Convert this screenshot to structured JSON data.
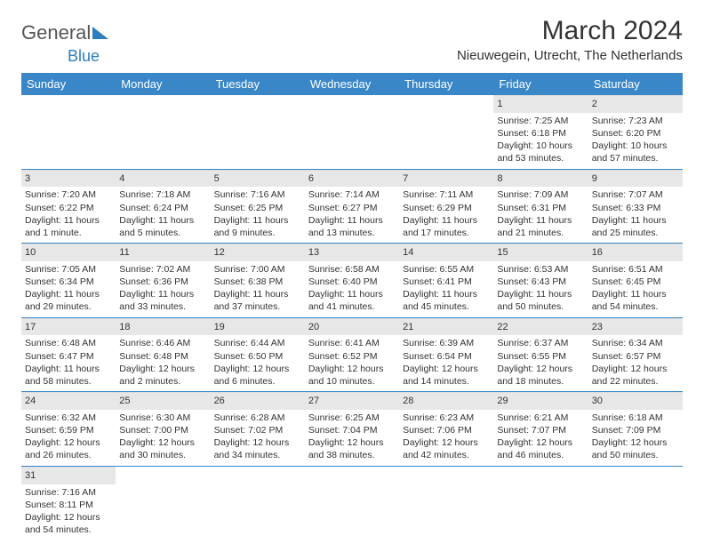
{
  "brand": {
    "part1": "General",
    "part2": "Blue"
  },
  "title": "March 2024",
  "location": "Nieuwegein, Utrecht, The Netherlands",
  "colors": {
    "header_bg": "#3a87c7",
    "daynum_bg": "#e7e7e7",
    "text": "#333333",
    "brand_blue": "#2b7fbf"
  },
  "day_names": [
    "Sunday",
    "Monday",
    "Tuesday",
    "Wednesday",
    "Thursday",
    "Friday",
    "Saturday"
  ],
  "weeks": [
    [
      null,
      null,
      null,
      null,
      null,
      {
        "n": "1",
        "sunrise": "Sunrise: 7:25 AM",
        "sunset": "Sunset: 6:18 PM",
        "daylight": "Daylight: 10 hours and 53 minutes."
      },
      {
        "n": "2",
        "sunrise": "Sunrise: 7:23 AM",
        "sunset": "Sunset: 6:20 PM",
        "daylight": "Daylight: 10 hours and 57 minutes."
      }
    ],
    [
      {
        "n": "3",
        "sunrise": "Sunrise: 7:20 AM",
        "sunset": "Sunset: 6:22 PM",
        "daylight": "Daylight: 11 hours and 1 minute."
      },
      {
        "n": "4",
        "sunrise": "Sunrise: 7:18 AM",
        "sunset": "Sunset: 6:24 PM",
        "daylight": "Daylight: 11 hours and 5 minutes."
      },
      {
        "n": "5",
        "sunrise": "Sunrise: 7:16 AM",
        "sunset": "Sunset: 6:25 PM",
        "daylight": "Daylight: 11 hours and 9 minutes."
      },
      {
        "n": "6",
        "sunrise": "Sunrise: 7:14 AM",
        "sunset": "Sunset: 6:27 PM",
        "daylight": "Daylight: 11 hours and 13 minutes."
      },
      {
        "n": "7",
        "sunrise": "Sunrise: 7:11 AM",
        "sunset": "Sunset: 6:29 PM",
        "daylight": "Daylight: 11 hours and 17 minutes."
      },
      {
        "n": "8",
        "sunrise": "Sunrise: 7:09 AM",
        "sunset": "Sunset: 6:31 PM",
        "daylight": "Daylight: 11 hours and 21 minutes."
      },
      {
        "n": "9",
        "sunrise": "Sunrise: 7:07 AM",
        "sunset": "Sunset: 6:33 PM",
        "daylight": "Daylight: 11 hours and 25 minutes."
      }
    ],
    [
      {
        "n": "10",
        "sunrise": "Sunrise: 7:05 AM",
        "sunset": "Sunset: 6:34 PM",
        "daylight": "Daylight: 11 hours and 29 minutes."
      },
      {
        "n": "11",
        "sunrise": "Sunrise: 7:02 AM",
        "sunset": "Sunset: 6:36 PM",
        "daylight": "Daylight: 11 hours and 33 minutes."
      },
      {
        "n": "12",
        "sunrise": "Sunrise: 7:00 AM",
        "sunset": "Sunset: 6:38 PM",
        "daylight": "Daylight: 11 hours and 37 minutes."
      },
      {
        "n": "13",
        "sunrise": "Sunrise: 6:58 AM",
        "sunset": "Sunset: 6:40 PM",
        "daylight": "Daylight: 11 hours and 41 minutes."
      },
      {
        "n": "14",
        "sunrise": "Sunrise: 6:55 AM",
        "sunset": "Sunset: 6:41 PM",
        "daylight": "Daylight: 11 hours and 45 minutes."
      },
      {
        "n": "15",
        "sunrise": "Sunrise: 6:53 AM",
        "sunset": "Sunset: 6:43 PM",
        "daylight": "Daylight: 11 hours and 50 minutes."
      },
      {
        "n": "16",
        "sunrise": "Sunrise: 6:51 AM",
        "sunset": "Sunset: 6:45 PM",
        "daylight": "Daylight: 11 hours and 54 minutes."
      }
    ],
    [
      {
        "n": "17",
        "sunrise": "Sunrise: 6:48 AM",
        "sunset": "Sunset: 6:47 PM",
        "daylight": "Daylight: 11 hours and 58 minutes."
      },
      {
        "n": "18",
        "sunrise": "Sunrise: 6:46 AM",
        "sunset": "Sunset: 6:48 PM",
        "daylight": "Daylight: 12 hours and 2 minutes."
      },
      {
        "n": "19",
        "sunrise": "Sunrise: 6:44 AM",
        "sunset": "Sunset: 6:50 PM",
        "daylight": "Daylight: 12 hours and 6 minutes."
      },
      {
        "n": "20",
        "sunrise": "Sunrise: 6:41 AM",
        "sunset": "Sunset: 6:52 PM",
        "daylight": "Daylight: 12 hours and 10 minutes."
      },
      {
        "n": "21",
        "sunrise": "Sunrise: 6:39 AM",
        "sunset": "Sunset: 6:54 PM",
        "daylight": "Daylight: 12 hours and 14 minutes."
      },
      {
        "n": "22",
        "sunrise": "Sunrise: 6:37 AM",
        "sunset": "Sunset: 6:55 PM",
        "daylight": "Daylight: 12 hours and 18 minutes."
      },
      {
        "n": "23",
        "sunrise": "Sunrise: 6:34 AM",
        "sunset": "Sunset: 6:57 PM",
        "daylight": "Daylight: 12 hours and 22 minutes."
      }
    ],
    [
      {
        "n": "24",
        "sunrise": "Sunrise: 6:32 AM",
        "sunset": "Sunset: 6:59 PM",
        "daylight": "Daylight: 12 hours and 26 minutes."
      },
      {
        "n": "25",
        "sunrise": "Sunrise: 6:30 AM",
        "sunset": "Sunset: 7:00 PM",
        "daylight": "Daylight: 12 hours and 30 minutes."
      },
      {
        "n": "26",
        "sunrise": "Sunrise: 6:28 AM",
        "sunset": "Sunset: 7:02 PM",
        "daylight": "Daylight: 12 hours and 34 minutes."
      },
      {
        "n": "27",
        "sunrise": "Sunrise: 6:25 AM",
        "sunset": "Sunset: 7:04 PM",
        "daylight": "Daylight: 12 hours and 38 minutes."
      },
      {
        "n": "28",
        "sunrise": "Sunrise: 6:23 AM",
        "sunset": "Sunset: 7:06 PM",
        "daylight": "Daylight: 12 hours and 42 minutes."
      },
      {
        "n": "29",
        "sunrise": "Sunrise: 6:21 AM",
        "sunset": "Sunset: 7:07 PM",
        "daylight": "Daylight: 12 hours and 46 minutes."
      },
      {
        "n": "30",
        "sunrise": "Sunrise: 6:18 AM",
        "sunset": "Sunset: 7:09 PM",
        "daylight": "Daylight: 12 hours and 50 minutes."
      }
    ],
    [
      {
        "n": "31",
        "sunrise": "Sunrise: 7:16 AM",
        "sunset": "Sunset: 8:11 PM",
        "daylight": "Daylight: 12 hours and 54 minutes."
      },
      null,
      null,
      null,
      null,
      null,
      null
    ]
  ]
}
